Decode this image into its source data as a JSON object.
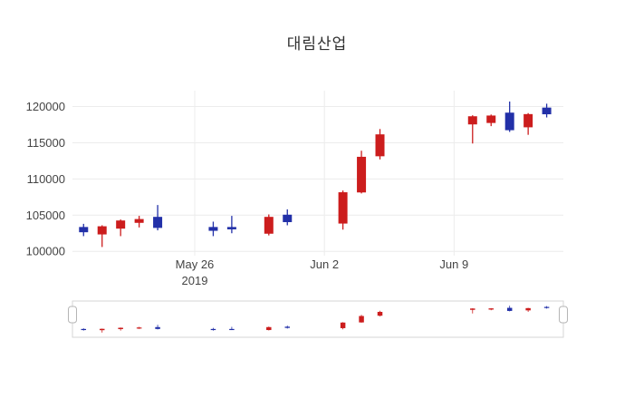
{
  "chart_data": {
    "type": "candlestick",
    "title": "대림산업",
    "xlabel": "",
    "ylabel": "",
    "increasing_color": "#cc1d1d",
    "decreasing_color": "#2230a8",
    "grid": true,
    "legend": false,
    "rangeslider": true,
    "xlim": [
      -0.6,
      25.9
    ],
    "ylim": [
      99400,
      122200
    ],
    "slider_ylim": [
      99800,
      121500
    ],
    "y_ticks": [
      100000,
      105000,
      110000,
      115000,
      120000
    ],
    "x_ticks": [
      {
        "serial": 6,
        "label": "May 26",
        "sublabel": "2019"
      },
      {
        "serial": 13,
        "label": "Jun 2",
        "sublabel": ""
      },
      {
        "serial": 20,
        "label": "Jun 9",
        "sublabel": ""
      }
    ],
    "ohlc": [
      {
        "serial": 0,
        "date": "2019-05-20",
        "open": 103300,
        "high": 103800,
        "low": 102100,
        "close": 102700
      },
      {
        "serial": 1,
        "date": "2019-05-21",
        "open": 102400,
        "high": 103600,
        "low": 100600,
        "close": 103400
      },
      {
        "serial": 2,
        "date": "2019-05-22",
        "open": 103200,
        "high": 104400,
        "low": 102100,
        "close": 104200
      },
      {
        "serial": 3,
        "date": "2019-05-23",
        "open": 104000,
        "high": 104900,
        "low": 103300,
        "close": 104400
      },
      {
        "serial": 4,
        "date": "2019-05-24",
        "open": 104700,
        "high": 106400,
        "low": 102900,
        "close": 103300
      },
      {
        "serial": 7,
        "date": "2019-05-27",
        "open": 103300,
        "high": 104100,
        "low": 102100,
        "close": 102900
      },
      {
        "serial": 8,
        "date": "2019-05-28",
        "open": 103300,
        "high": 104900,
        "low": 102500,
        "close": 103100
      },
      {
        "serial": 10,
        "date": "2019-05-30",
        "open": 102500,
        "high": 105100,
        "low": 102200,
        "close": 104700
      },
      {
        "serial": 11,
        "date": "2019-05-31",
        "open": 105000,
        "high": 105800,
        "low": 103600,
        "close": 104100
      },
      {
        "serial": 14,
        "date": "2019-06-03",
        "open": 103900,
        "high": 108400,
        "low": 103000,
        "close": 108100
      },
      {
        "serial": 15,
        "date": "2019-06-04",
        "open": 108200,
        "high": 113900,
        "low": 108000,
        "close": 113000
      },
      {
        "serial": 16,
        "date": "2019-06-05",
        "open": 113200,
        "high": 116900,
        "low": 112700,
        "close": 116100
      },
      {
        "serial": 21,
        "date": "2019-06-10",
        "open": 117600,
        "high": 118800,
        "low": 114900,
        "close": 118600
      },
      {
        "serial": 22,
        "date": "2019-06-11",
        "open": 117800,
        "high": 118900,
        "low": 117300,
        "close": 118700
      },
      {
        "serial": 23,
        "date": "2019-06-12",
        "open": 119100,
        "high": 120700,
        "low": 116500,
        "close": 116800
      },
      {
        "serial": 24,
        "date": "2019-06-13",
        "open": 117200,
        "high": 119100,
        "low": 116100,
        "close": 118900
      },
      {
        "serial": 25,
        "date": "2019-06-14",
        "open": 119800,
        "high": 120400,
        "low": 118500,
        "close": 119000
      }
    ]
  }
}
